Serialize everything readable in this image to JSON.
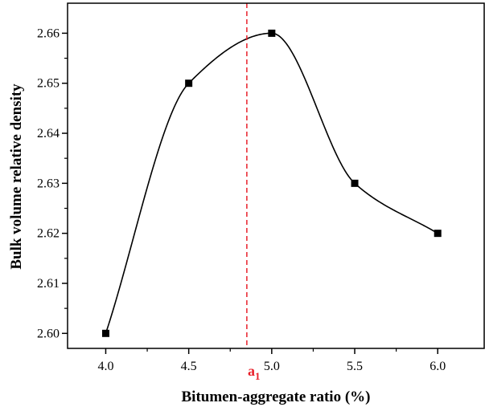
{
  "chart_data": {
    "type": "line",
    "xlabel": "Bitumen-aggregate ratio (%)",
    "ylabel": "Bulk volume relative density",
    "xlim": [
      3.77,
      6.28
    ],
    "ylim": [
      2.597,
      2.666
    ],
    "xticks": [
      "4.0",
      "4.5",
      "5.0",
      "5.5",
      "6.0"
    ],
    "yticks": [
      "2.60",
      "2.61",
      "2.62",
      "2.63",
      "2.64",
      "2.65",
      "2.66"
    ],
    "series": [
      {
        "x": [
          4.0,
          4.5,
          5.0,
          5.5,
          6.0
        ],
        "y": [
          2.6,
          2.65,
          2.66,
          2.63,
          2.62
        ],
        "marker": "square",
        "line": "smooth",
        "color": "#000000"
      }
    ],
    "vline": {
      "x": 4.85,
      "label": "a",
      "label_sub": "1",
      "color": "#e8202a",
      "style": "dashed"
    },
    "grid": false,
    "legend": "none"
  }
}
